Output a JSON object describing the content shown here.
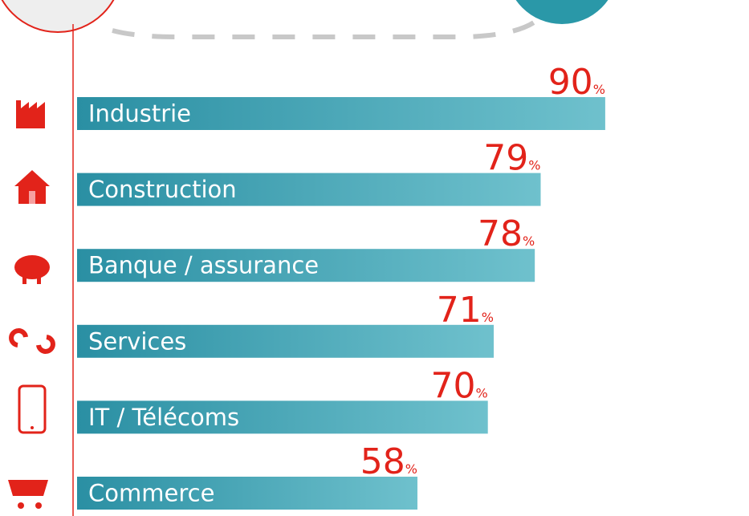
{
  "chart_data": {
    "type": "bar",
    "orientation": "horizontal",
    "categories": [
      "Industrie",
      "Construction",
      "Banque / assurance",
      "Services",
      "IT / Télécoms",
      "Commerce"
    ],
    "values": [
      90,
      79,
      78,
      71,
      70,
      58
    ],
    "value_labels": [
      "90%",
      "79%",
      "78%",
      "71%",
      "70%",
      "58%"
    ],
    "color": "#2a8fa3"
  }
}
